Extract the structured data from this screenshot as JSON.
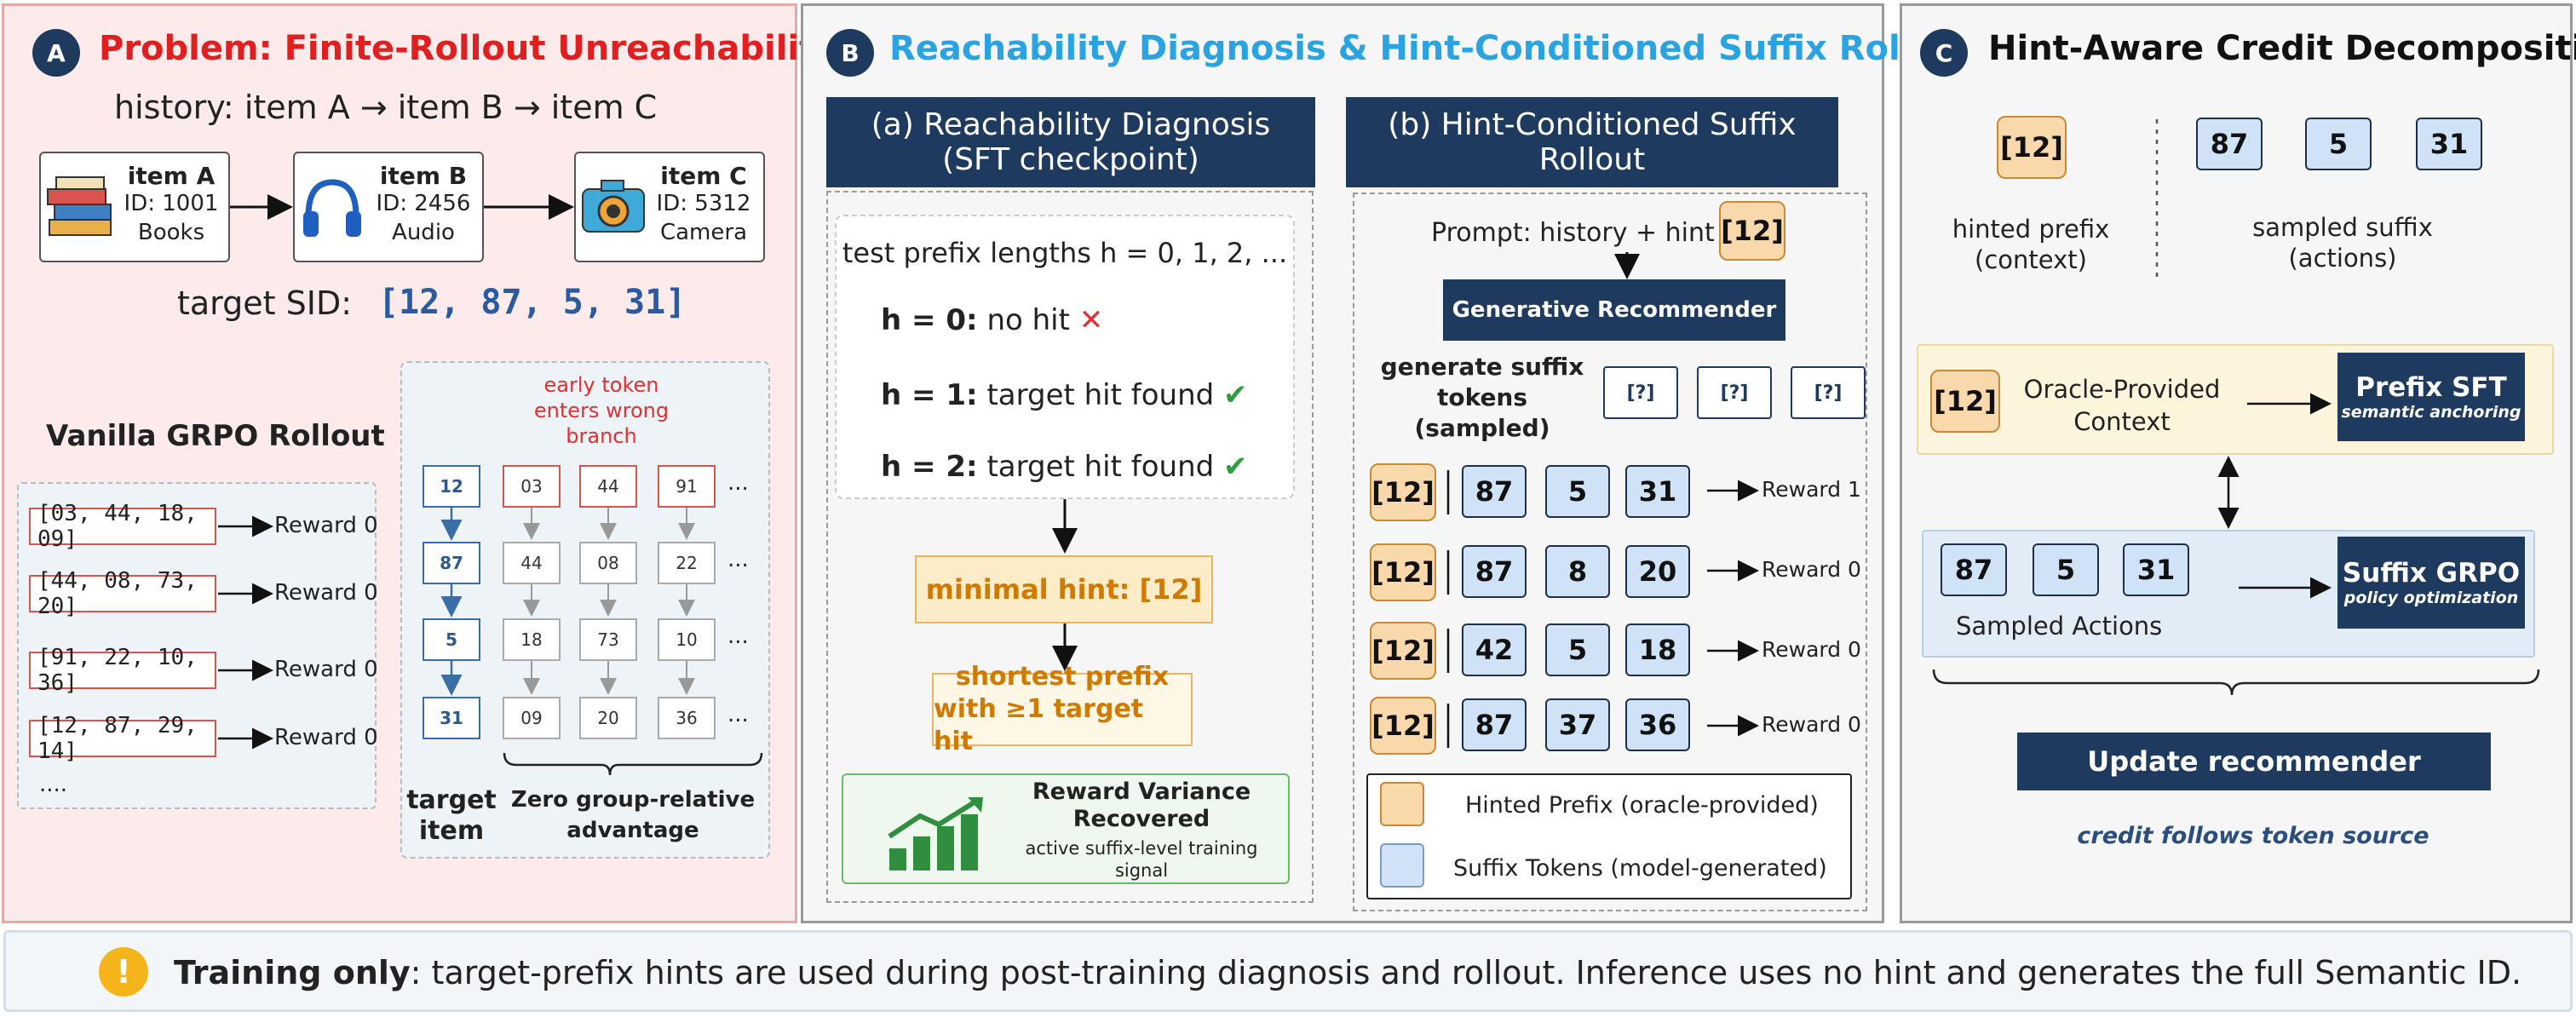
{
  "panel_a": {
    "badge": "A",
    "title": "Problem: Finite-Rollout Unreachability",
    "history": "history: item A → item B → item C",
    "items": [
      {
        "name": "item A",
        "id": "ID: 1001",
        "cat": "Books",
        "icon": "books-icon"
      },
      {
        "name": "item B",
        "id": "ID: 2456",
        "cat": "Audio",
        "icon": "headphones-icon"
      },
      {
        "name": "item C",
        "id": "ID: 5312",
        "cat": "Camera",
        "icon": "camera-icon"
      }
    ],
    "target_label": "target SID:",
    "target_value": "[12, 87, 5, 31]",
    "vanilla_title": "Vanilla GRPO Rollout",
    "rollouts": [
      {
        "seq": "[03, 44, 18, 09]",
        "reward": "Reward 0"
      },
      {
        "seq": "[44, 08, 73, 20]",
        "reward": "Reward 0"
      },
      {
        "seq": "[91, 22, 10, 36]",
        "reward": "Reward 0"
      },
      {
        "seq": "[12, 87, 29, 14]",
        "reward": "Reward 0"
      }
    ],
    "more": "....",
    "early_note": [
      "early token",
      "enters wrong",
      "branch"
    ],
    "grid_target": [
      "12",
      "87",
      "5",
      "31"
    ],
    "grid_cols": [
      [
        "03",
        "44",
        "18",
        "09"
      ],
      [
        "44",
        "08",
        "73",
        "20"
      ],
      [
        "91",
        "22",
        "10",
        "36"
      ]
    ],
    "ellipsis": "...",
    "target_item": [
      "target",
      "item"
    ],
    "zero_adv": [
      "Zero group-relative",
      "advantage"
    ]
  },
  "panel_b": {
    "badge": "B",
    "title": "Reachability Diagnosis & Hint-Conditioned Suffix Rollout",
    "sub_a_title": [
      "(a) Reachability Diagnosis",
      "(SFT checkpoint)"
    ],
    "test_line": "test prefix lengths h = 0, 1, 2, ...",
    "h_rows": [
      {
        "h": "h = 0:",
        "text": "no hit",
        "mark": "✕"
      },
      {
        "h": "h = 1:",
        "text": "target hit found",
        "mark": "✔"
      },
      {
        "h": "h = 2:",
        "text": "target hit found",
        "mark": "✔"
      }
    ],
    "minimal_hint": "minimal hint: [12]",
    "shortest": [
      "shortest prefix",
      "with ≥1 target hit"
    ],
    "variance": [
      "Reward Variance",
      "Recovered"
    ],
    "variance_sub": [
      "active suffix-level training",
      "signal"
    ],
    "sub_b_title": [
      "(b) Hint-Conditioned Suffix",
      "Rollout"
    ],
    "prompt": "Prompt: history + hint",
    "hint_token": "[12]",
    "gen_rec": "Generative Recommender",
    "gen_suffix": [
      "generate suffix",
      "tokens",
      "(sampled)"
    ],
    "unknown": [
      "[?]",
      "[?]",
      "[?]"
    ],
    "rows": [
      {
        "hint": "[12]",
        "tokens": [
          "87",
          "5",
          "31"
        ],
        "reward": "Reward 1"
      },
      {
        "hint": "[12]",
        "tokens": [
          "87",
          "8",
          "20"
        ],
        "reward": "Reward 0"
      },
      {
        "hint": "[12]",
        "tokens": [
          "42",
          "5",
          "18"
        ],
        "reward": "Reward 0"
      },
      {
        "hint": "[12]",
        "tokens": [
          "87",
          "37",
          "36"
        ],
        "reward": "Reward 0"
      }
    ],
    "legend_hint": "Hinted Prefix (oracle-provided)",
    "legend_suffix": "Suffix Tokens (model-generated)",
    "colors": {
      "hint_fill": "#f9d8ab",
      "suffix_fill": "#cfe2f6",
      "title": "#2aa3e0"
    }
  },
  "panel_c": {
    "badge": "C",
    "title": "Hint-Aware Credit Decomposition",
    "hinted_token": "[12]",
    "suffix_tokens": [
      "87",
      "5",
      "31"
    ],
    "hinted_prefix": [
      "hinted prefix",
      "(context)"
    ],
    "sampled_suffix": [
      "sampled suffix",
      "(actions)"
    ],
    "oracle_token": "[12]",
    "oracle_text": [
      "Oracle-Provided",
      "Context"
    ],
    "prefix_sft": "Prefix SFT",
    "prefix_sft_sub": "semantic anchoring",
    "actions": [
      "87",
      "5",
      "31"
    ],
    "sampled_actions": "Sampled Actions",
    "suffix_grpo": "Suffix GRPO",
    "suffix_grpo_sub": "policy optimization",
    "update": "Update recommender",
    "credit": "credit follows token source"
  },
  "footer": {
    "bold": "Training only",
    "text": ": target-prefix hints are used during post-training diagnosis and rollout. Inference uses no hint and generates the full Semantic ID."
  }
}
